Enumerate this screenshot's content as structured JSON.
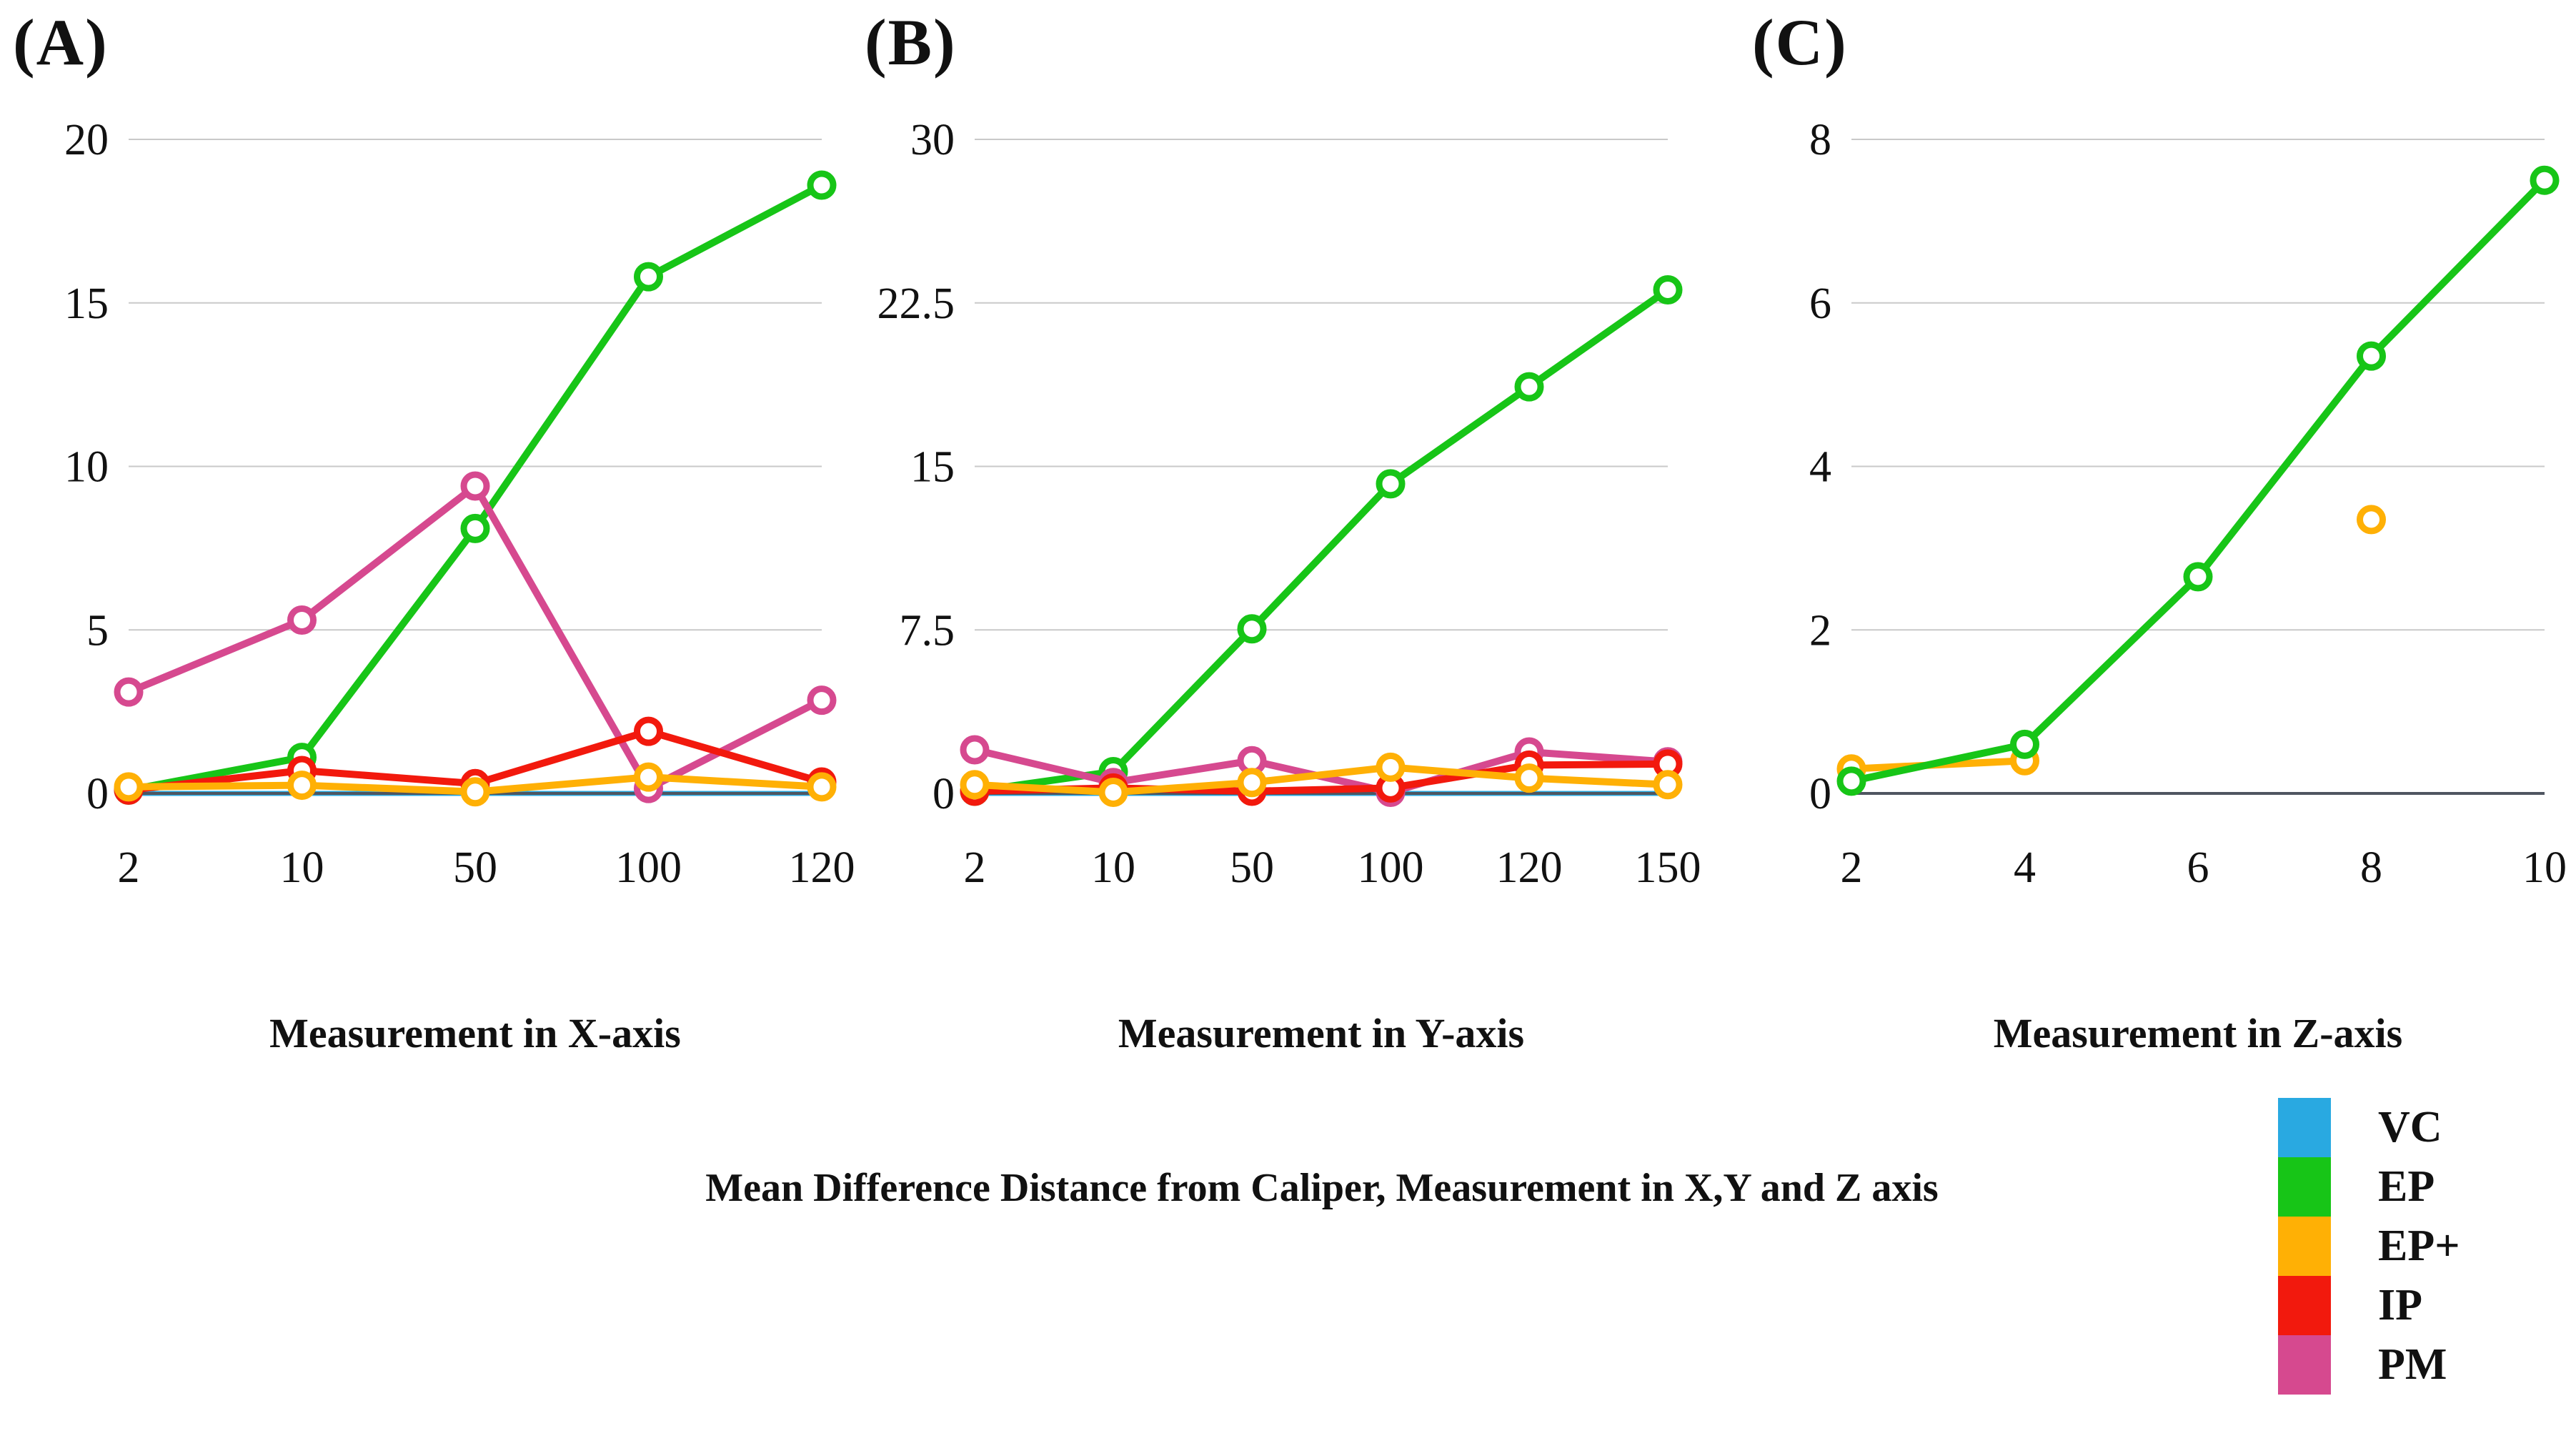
{
  "title": "Mean Difference Distance from Caliper, Measurement in X,Y and Z axis",
  "style": {
    "gridline_color": "#c9c9c9",
    "axis_color": "#4f5560",
    "text_color": "#111111"
  },
  "legend": {
    "items": [
      {
        "label": "VC",
        "color": "#29a9e1"
      },
      {
        "label": "EP",
        "color": "#17c517"
      },
      {
        "label": "EP+",
        "color": "#ffb005"
      },
      {
        "label": "IP",
        "color": "#f2190d"
      },
      {
        "label": "PM",
        "color": "#d6498f"
      }
    ]
  },
  "chart_data": [
    {
      "type": "line",
      "panel": "(A)",
      "xlabel": "Measurement in X-axis",
      "categories": [
        "2",
        "10",
        "50",
        "100",
        "120"
      ],
      "ylim": [
        0,
        20
      ],
      "grid": true,
      "yticks": [
        {
          "v": 0,
          "label": "0"
        },
        {
          "v": 5,
          "label": "5"
        },
        {
          "v": 10,
          "label": "10"
        },
        {
          "v": 15,
          "label": "15"
        },
        {
          "v": 20,
          "label": "20"
        }
      ],
      "series": [
        {
          "name": "VC",
          "color": "#29a9e1",
          "values": [
            0,
            0,
            0,
            0,
            0
          ]
        },
        {
          "name": "EP",
          "color": "#17c517",
          "values": [
            0.1,
            1.1,
            8.1,
            15.8,
            18.6
          ]
        },
        {
          "name": "PM",
          "color": "#d6498f",
          "values": [
            3.1,
            5.3,
            9.4,
            0.15,
            2.85
          ]
        },
        {
          "name": "IP",
          "color": "#f2190d",
          "values": [
            0.1,
            0.7,
            0.3,
            1.9,
            0.35
          ]
        },
        {
          "name": "EP+",
          "color": "#ffb005",
          "values": [
            0.2,
            0.25,
            0.05,
            0.5,
            0.2
          ]
        }
      ]
    },
    {
      "type": "line",
      "panel": "(B)",
      "xlabel": "Measurement in Y-axis",
      "categories": [
        "2",
        "10",
        "50",
        "100",
        "120",
        "150"
      ],
      "ylim": [
        0,
        30
      ],
      "grid": true,
      "yticks": [
        {
          "v": 0,
          "label": "0"
        },
        {
          "v": 7.5,
          "label": "7.5"
        },
        {
          "v": 15,
          "label": "15"
        },
        {
          "v": 22.5,
          "label": "22.5"
        },
        {
          "v": 30,
          "label": "30"
        }
      ],
      "series": [
        {
          "name": "VC",
          "color": "#29a9e1",
          "values": [
            0,
            0,
            0,
            0,
            0,
            0
          ]
        },
        {
          "name": "EP",
          "color": "#17c517",
          "values": [
            0.1,
            1.0,
            7.55,
            14.2,
            18.65,
            23.1
          ]
        },
        {
          "name": "PM",
          "color": "#d6498f",
          "values": [
            2.0,
            0.5,
            1.5,
            0.05,
            1.9,
            1.45
          ]
        },
        {
          "name": "IP",
          "color": "#f2190d",
          "values": [
            0.1,
            0.25,
            0.1,
            0.25,
            1.3,
            1.35
          ]
        },
        {
          "name": "EP+",
          "color": "#ffb005",
          "values": [
            0.4,
            0.05,
            0.5,
            1.2,
            0.7,
            0.4
          ]
        }
      ]
    },
    {
      "type": "line",
      "panel": "(C)",
      "xlabel": "Measurement in Z-axis",
      "categories": [
        "2",
        "4",
        "6",
        "8",
        "10"
      ],
      "ylim": [
        0,
        8
      ],
      "grid": true,
      "yticks": [
        {
          "v": 0,
          "label": "0"
        },
        {
          "v": 2,
          "label": "2"
        },
        {
          "v": 4,
          "label": "4"
        },
        {
          "v": 6,
          "label": "6"
        },
        {
          "v": 8,
          "label": "8"
        }
      ],
      "series": [
        {
          "name": "EP+",
          "color": "#ffb005",
          "values": [
            0.3,
            0.4,
            null,
            3.35,
            null
          ]
        },
        {
          "name": "EP",
          "color": "#17c517",
          "values": [
            0.15,
            0.6,
            2.65,
            5.35,
            7.5
          ]
        }
      ]
    }
  ]
}
